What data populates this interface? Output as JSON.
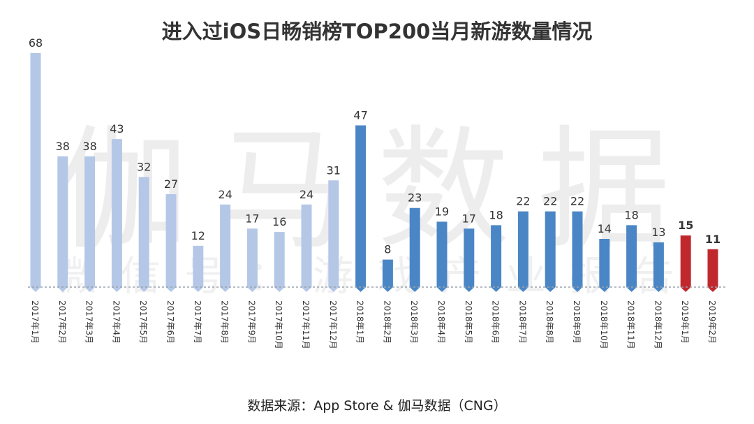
{
  "chart_data": {
    "type": "bar",
    "title": "进入过iOS日畅销榜TOP200当月新游数量情况",
    "categories": [
      "2017年1月",
      "2017年2月",
      "2017年3月",
      "2017年4月",
      "2017年5月",
      "2017年6月",
      "2017年7月",
      "2017年8月",
      "2017年9月",
      "2017年10月",
      "2017年11月",
      "2017年12月",
      "2018年1月",
      "2018年2月",
      "2018年3月",
      "2018年4月",
      "2018年5月",
      "2018年6月",
      "2018年7月",
      "2018年8月",
      "2018年9月",
      "2018年10月",
      "2018年11月",
      "2018年12月",
      "2019年1月",
      "2019年2月"
    ],
    "values": [
      68,
      38,
      38,
      43,
      32,
      27,
      12,
      24,
      17,
      16,
      24,
      31,
      47,
      8,
      23,
      19,
      17,
      18,
      22,
      22,
      22,
      14,
      18,
      13,
      15,
      11
    ],
    "groups": [
      "2017",
      "2017",
      "2017",
      "2017",
      "2017",
      "2017",
      "2017",
      "2017",
      "2017",
      "2017",
      "2017",
      "2017",
      "2018",
      "2018",
      "2018",
      "2018",
      "2018",
      "2018",
      "2018",
      "2018",
      "2018",
      "2018",
      "2018",
      "2018",
      "2019",
      "2019"
    ],
    "highlight": [
      "2019年1月",
      "2019年2月"
    ],
    "colors": {
      "2017": "#b4c7e7",
      "2018": "#4a86c5",
      "2019": "#c0282e"
    },
    "ylim": [
      0,
      72
    ],
    "xlabel": "",
    "ylabel": ""
  },
  "watermark": {
    "main": "伽马数据",
    "sub": "微信号：游戏产业报告"
  },
  "source": "数据来源：App Store & 伽马数据（CNG）"
}
